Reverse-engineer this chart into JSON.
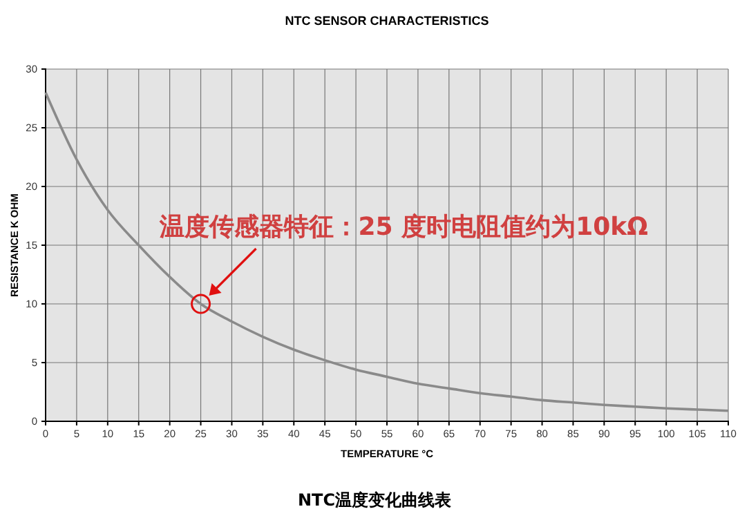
{
  "chart_data": {
    "type": "line",
    "title": "NTC SENSOR CHARACTERISTICS",
    "xlabel": "TEMPERATURE  °C",
    "ylabel": "RESISTANCE  K OHM",
    "x": [
      0,
      5,
      10,
      15,
      20,
      25,
      30,
      35,
      40,
      45,
      50,
      55,
      60,
      65,
      70,
      75,
      80,
      85,
      90,
      95,
      100,
      105,
      110
    ],
    "series": [
      {
        "color": "#8a8a8a",
        "values": [
          28,
          22.3,
          18,
          15,
          12.3,
          10,
          8.5,
          7.2,
          6.1,
          5.2,
          4.4,
          3.8,
          3.2,
          2.8,
          2.4,
          2.1,
          1.8,
          1.6,
          1.4,
          1.25,
          1.1,
          1.0,
          0.9
        ]
      }
    ],
    "xlim": [
      0,
      110
    ],
    "xticks": [
      0,
      5,
      10,
      15,
      20,
      25,
      30,
      35,
      40,
      45,
      50,
      55,
      60,
      65,
      70,
      75,
      80,
      85,
      90,
      95,
      100,
      105,
      110
    ],
    "ylim": [
      0,
      30
    ],
    "yticks": [
      0,
      5,
      10,
      15,
      20,
      25,
      30
    ],
    "grid": true,
    "marker": "none",
    "line_style": "solid",
    "annotations": [
      {
        "text": "温度传感器特征：25 度时电阻值约为10kΩ",
        "x": 25,
        "y": 10
      },
      "NTC温度变化曲线表"
    ]
  }
}
